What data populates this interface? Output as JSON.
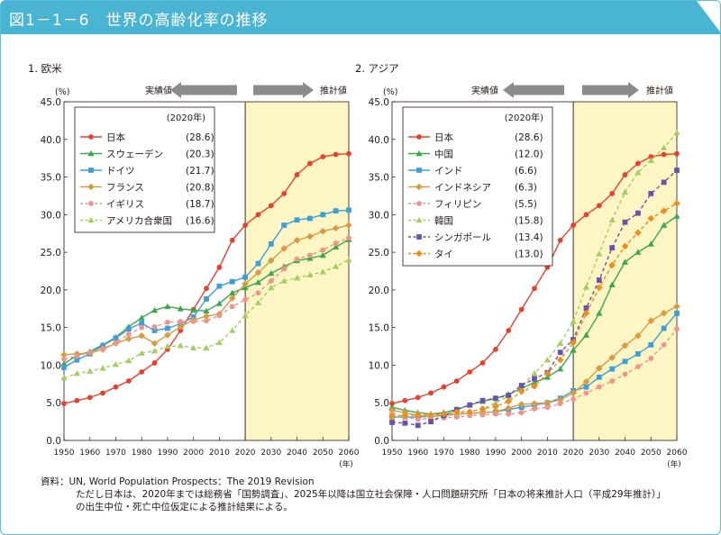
{
  "header": {
    "title": "図1－1－6　世界の高齢化率の推移",
    "color": "#4ab4d3"
  },
  "source": {
    "line1": "資料：UN, World Population Prospects：The 2019 Revision",
    "line2": "ただし日本は、2020年までは総務省「国勢調査」、2025年以降は国立社会保障・人口問題研究所「日本の将来推計人口（平成29年推計）」",
    "line3": "の出生中位・死亡中位仮定による推計結果による。"
  },
  "colors": {
    "projection_bg": "#fdf5c3",
    "arrow": "#8c8c8c"
  },
  "chart_data": [
    {
      "type": "line",
      "title": "1.  欧米",
      "y_unit": "(%)",
      "x_unit": "(年)",
      "ylim": [
        0,
        45
      ],
      "yticks": [
        "0.0",
        "5.0",
        "10.0",
        "15.0",
        "20.0",
        "25.0",
        "30.0",
        "35.0",
        "40.0",
        "45.0"
      ],
      "xlim": [
        1950,
        2060
      ],
      "xticks": [
        "1950",
        "1960",
        "1970",
        "1980",
        "1990",
        "2000",
        "2010",
        "2020",
        "2030",
        "2040",
        "2050",
        "2060"
      ],
      "projection_start": 2020,
      "actual_label": "実績値",
      "projection_label": "推計値",
      "legend_title": "(2020年)",
      "x": [
        1950,
        1955,
        1960,
        1965,
        1970,
        1975,
        1980,
        1985,
        1990,
        1995,
        2000,
        2005,
        2010,
        2015,
        2020,
        2025,
        2030,
        2035,
        2040,
        2045,
        2050,
        2055,
        2060
      ],
      "series": [
        {
          "name": "日本",
          "value_label": "(28.6)",
          "color": "#e8402e",
          "style": "solid",
          "marker": "circle",
          "values": [
            4.9,
            5.3,
            5.7,
            6.3,
            7.1,
            7.9,
            9.1,
            10.3,
            12.1,
            14.6,
            17.4,
            20.2,
            23.0,
            26.6,
            28.6,
            30.0,
            31.2,
            32.8,
            35.3,
            36.8,
            37.7,
            38.0,
            38.1
          ]
        },
        {
          "name": "スウェーデン",
          "value_label": "(20.3)",
          "color": "#3aa84b",
          "style": "solid",
          "marker": "triangle",
          "values": [
            10.2,
            11.3,
            11.8,
            12.7,
            13.7,
            15.1,
            16.3,
            17.3,
            17.8,
            17.5,
            17.3,
            17.2,
            18.2,
            19.6,
            20.3,
            21.0,
            22.2,
            23.1,
            23.9,
            24.2,
            24.6,
            25.7,
            26.7
          ]
        },
        {
          "name": "ドイツ",
          "value_label": "(21.7)",
          "color": "#3d9fd8",
          "style": "solid",
          "marker": "square",
          "values": [
            9.7,
            10.7,
            11.5,
            12.6,
            13.6,
            14.8,
            15.6,
            14.6,
            14.9,
            15.5,
            16.4,
            18.8,
            20.5,
            21.1,
            21.7,
            23.5,
            26.1,
            28.6,
            29.3,
            29.5,
            30.0,
            30.5,
            30.6
          ]
        },
        {
          "name": "フランス",
          "value_label": "(20.8)",
          "color": "#d99a44",
          "style": "solid",
          "marker": "diamond",
          "values": [
            11.4,
            11.5,
            11.6,
            12.1,
            12.9,
            13.5,
            13.9,
            12.9,
            14.0,
            15.1,
            16.0,
            16.5,
            16.8,
            18.9,
            20.8,
            22.3,
            23.9,
            25.5,
            26.6,
            27.1,
            27.8,
            28.2,
            28.6
          ]
        },
        {
          "name": "イギリス",
          "value_label": "(18.7)",
          "color": "#f0948a",
          "style": "dashed",
          "marker": "circle",
          "values": [
            10.8,
            11.2,
            11.7,
            12.2,
            13.0,
            14.1,
            15.0,
            15.1,
            15.7,
            15.8,
            15.8,
            15.9,
            16.6,
            17.8,
            18.7,
            19.6,
            21.2,
            22.8,
            24.1,
            24.6,
            25.3,
            26.2,
            26.9
          ]
        },
        {
          "name": "アメリカ合衆国",
          "value_label": "(16.6)",
          "color": "#a3cf62",
          "style": "dashed",
          "marker": "triangle",
          "values": [
            8.3,
            8.9,
            9.2,
            9.6,
            10.1,
            10.6,
            11.6,
            11.9,
            12.5,
            12.6,
            12.3,
            12.3,
            13.0,
            14.6,
            16.6,
            18.3,
            20.3,
            21.2,
            21.6,
            22.0,
            22.4,
            23.1,
            24.0
          ]
        }
      ]
    },
    {
      "type": "line",
      "title": "2.  アジア",
      "y_unit": "(%)",
      "x_unit": "(年)",
      "ylim": [
        0,
        45
      ],
      "yticks": [
        "0.0",
        "5.0",
        "10.0",
        "15.0",
        "20.0",
        "25.0",
        "30.0",
        "35.0",
        "40.0",
        "45.0"
      ],
      "xlim": [
        1950,
        2060
      ],
      "xticks": [
        "1950",
        "1960",
        "1970",
        "1980",
        "1990",
        "2000",
        "2010",
        "2020",
        "2030",
        "2040",
        "2050",
        "2060"
      ],
      "projection_start": 2020,
      "actual_label": "実績値",
      "projection_label": "推計値",
      "legend_title": "(2020年)",
      "x": [
        1950,
        1955,
        1960,
        1965,
        1970,
        1975,
        1980,
        1985,
        1990,
        1995,
        2000,
        2005,
        2010,
        2015,
        2020,
        2025,
        2030,
        2035,
        2040,
        2045,
        2050,
        2055,
        2060
      ],
      "series": [
        {
          "name": "日本",
          "value_label": "(28.6)",
          "color": "#e8402e",
          "style": "solid",
          "marker": "circle",
          "values": [
            4.9,
            5.3,
            5.7,
            6.3,
            7.1,
            7.9,
            9.1,
            10.3,
            12.1,
            14.6,
            17.4,
            20.2,
            23.0,
            26.6,
            28.6,
            30.0,
            31.2,
            32.8,
            35.3,
            36.8,
            37.7,
            38.0,
            38.1
          ]
        },
        {
          "name": "中国",
          "value_label": "(12.0)",
          "color": "#3aa84b",
          "style": "solid",
          "marker": "triangle",
          "values": [
            4.4,
            4.0,
            3.7,
            3.5,
            3.7,
            4.1,
            4.7,
            5.2,
            5.6,
            6.1,
            6.9,
            7.7,
            8.4,
            9.5,
            12.0,
            14.0,
            16.9,
            20.7,
            23.7,
            25.0,
            26.1,
            28.6,
            29.8
          ]
        },
        {
          "name": "インド",
          "value_label": "(6.6)",
          "color": "#3d9fd8",
          "style": "solid",
          "marker": "square",
          "values": [
            3.1,
            3.1,
            3.1,
            3.2,
            3.3,
            3.5,
            3.6,
            3.7,
            3.8,
            4.1,
            4.4,
            4.7,
            5.0,
            5.6,
            6.6,
            7.1,
            8.4,
            9.5,
            10.5,
            11.5,
            12.7,
            14.9,
            16.9
          ]
        },
        {
          "name": "インドネシア",
          "value_label": "(6.3)",
          "color": "#d99a44",
          "style": "solid",
          "marker": "diamond",
          "values": [
            4.0,
            3.7,
            3.3,
            3.2,
            3.4,
            3.5,
            3.6,
            3.7,
            3.8,
            4.3,
            4.8,
            4.9,
            5.0,
            5.4,
            6.3,
            7.8,
            9.6,
            11.0,
            12.6,
            13.9,
            15.9,
            16.9,
            17.8
          ]
        },
        {
          "name": "フィリピン",
          "value_label": "(5.5)",
          "color": "#f0948a",
          "style": "dashed",
          "marker": "circle",
          "values": [
            3.6,
            3.1,
            2.8,
            2.9,
            3.0,
            3.1,
            3.3,
            3.4,
            3.5,
            3.5,
            3.7,
            4.2,
            4.4,
            4.9,
            5.5,
            6.3,
            7.1,
            7.9,
            8.8,
            9.8,
            10.9,
            12.7,
            14.8
          ]
        },
        {
          "name": "韓国",
          "value_label": "(15.8)",
          "color": "#a3cf62",
          "style": "dashed",
          "marker": "triangle",
          "values": [
            3.0,
            3.3,
            3.6,
            3.4,
            3.5,
            3.7,
            3.8,
            4.2,
            5.0,
            5.9,
            7.2,
            8.9,
            10.7,
            12.9,
            15.8,
            20.4,
            24.8,
            29.3,
            33.0,
            35.6,
            37.2,
            38.9,
            40.9
          ]
        },
        {
          "name": "シンガポール",
          "value_label": "(13.4)",
          "color": "#6a53a8",
          "style": "dashed",
          "marker": "square",
          "values": [
            2.4,
            2.3,
            2.0,
            2.5,
            3.3,
            4.1,
            4.7,
            5.3,
            5.6,
            6.0,
            7.3,
            8.2,
            9.0,
            11.7,
            13.4,
            17.6,
            21.3,
            25.6,
            29.0,
            30.2,
            32.8,
            34.3,
            35.9
          ]
        },
        {
          "name": "タイ",
          "value_label": "(13.0)",
          "color": "#f18c1a",
          "style": "dashed",
          "marker": "diamond",
          "values": [
            3.2,
            3.3,
            3.4,
            3.4,
            3.5,
            3.8,
            3.8,
            4.2,
            4.5,
            5.2,
            6.5,
            7.2,
            8.9,
            10.7,
            13.0,
            16.9,
            20.3,
            23.3,
            25.8,
            27.6,
            29.5,
            30.5,
            31.5
          ]
        }
      ]
    }
  ]
}
